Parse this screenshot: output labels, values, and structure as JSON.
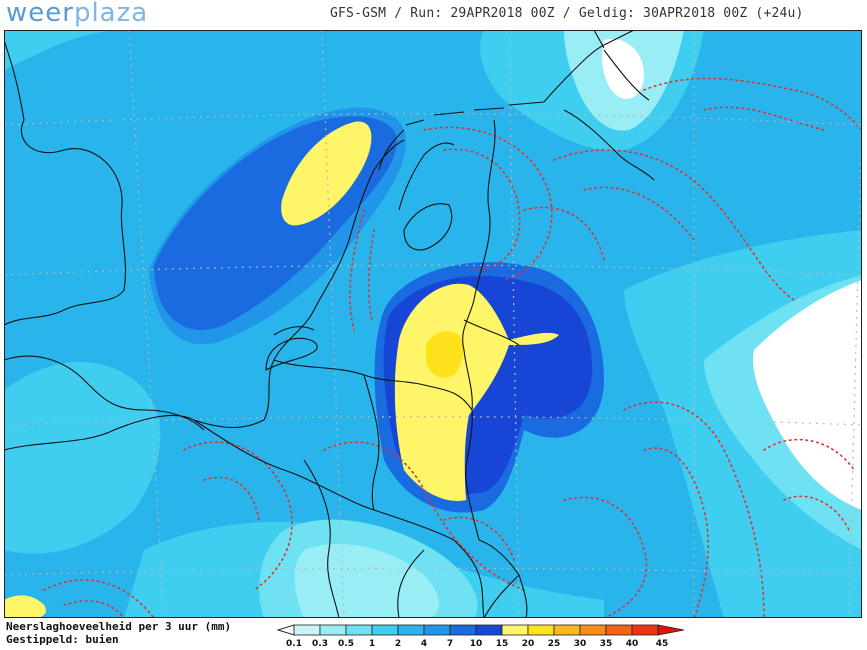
{
  "header": {
    "logo_part1": "weer",
    "logo_part2": "plaza",
    "run_info": "GFS-GSM / Run: 29APR2018 00Z / Geldig: 30APR2018 00Z (+24u)"
  },
  "legend": {
    "title": "Neerslaghoeveelheid per 3 uur (mm)",
    "subtitle": "Gestippeld: buien",
    "bins": [
      {
        "label": "0.1",
        "color": "#c9f5f8"
      },
      {
        "label": "0.3",
        "color": "#99eef5"
      },
      {
        "label": "0.5",
        "color": "#6ee2f2"
      },
      {
        "label": "1",
        "color": "#3fcdf0"
      },
      {
        "label": "2",
        "color": "#29b5ec"
      },
      {
        "label": "4",
        "color": "#2196e8"
      },
      {
        "label": "7",
        "color": "#1a6be0"
      },
      {
        "label": "10",
        "color": "#1746d6"
      },
      {
        "label": "15",
        "color": "#fff568"
      },
      {
        "label": "20",
        "color": "#fde21c"
      },
      {
        "label": "25",
        "color": "#fbb81b"
      },
      {
        "label": "30",
        "color": "#f98c19"
      },
      {
        "label": "35",
        "color": "#f66117"
      },
      {
        "label": "40",
        "color": "#ee3512"
      },
      {
        "label": "45",
        "color": "#e0120e"
      }
    ]
  },
  "colors": {
    "land_line": "#111111",
    "shower_dots": "#e03030",
    "grid": "#b8b8b8"
  }
}
